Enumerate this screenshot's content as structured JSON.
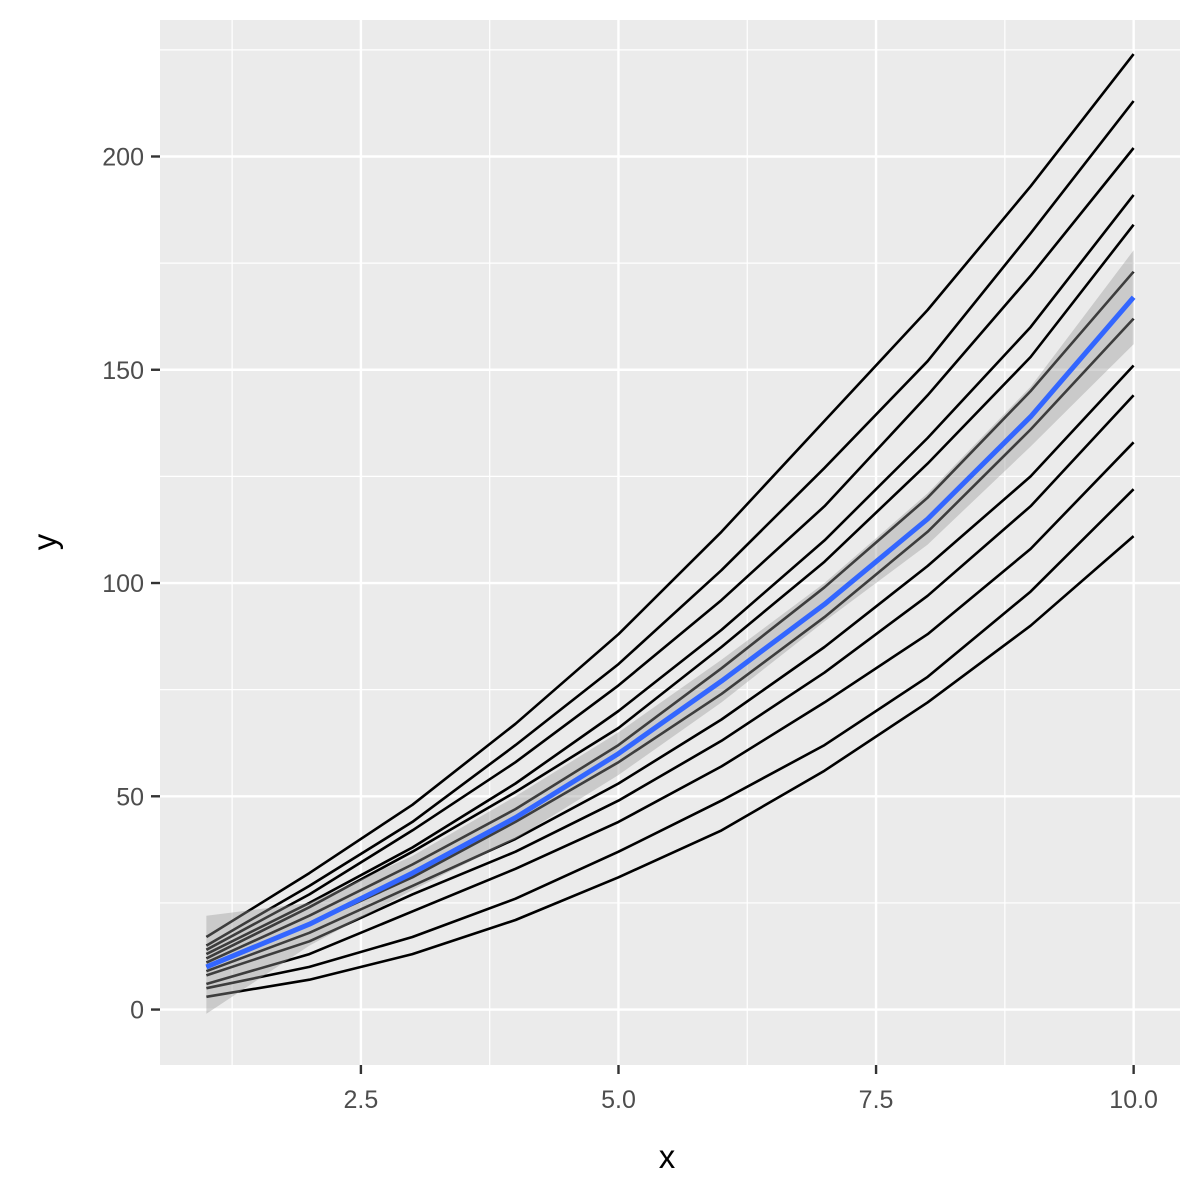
{
  "chart_data": {
    "type": "line",
    "title": "",
    "xlabel": "x",
    "ylabel": "y",
    "xlim": [
      0.55,
      10.45
    ],
    "ylim": [
      -13,
      232
    ],
    "x_ticks": [
      2.5,
      5.0,
      7.5,
      10.0
    ],
    "x_tick_labels": [
      "2.5",
      "5.0",
      "7.5",
      "10.0"
    ],
    "y_ticks": [
      0,
      50,
      100,
      150,
      200
    ],
    "y_tick_labels": [
      "0",
      "50",
      "100",
      "150",
      "200"
    ],
    "x_minor_ticks": [
      1.25,
      3.75,
      6.25,
      8.75
    ],
    "y_minor_ticks": [
      25,
      75,
      125,
      175,
      225
    ],
    "grid": true,
    "legend": "none",
    "x": [
      1,
      2,
      3,
      4,
      5,
      6,
      7,
      8,
      9,
      10
    ],
    "series": [
      {
        "values": [
          17,
          32,
          48,
          67,
          88,
          112,
          138,
          164,
          193,
          224
        ]
      },
      {
        "values": [
          15,
          29,
          44,
          62,
          81,
          103,
          127,
          152,
          182,
          213
        ]
      },
      {
        "values": [
          14,
          27,
          42,
          58,
          76,
          96,
          118,
          144,
          172,
          202
        ]
      },
      {
        "values": [
          13,
          25,
          38,
          53,
          70,
          89,
          110,
          134,
          160,
          191
        ]
      },
      {
        "values": [
          12,
          24,
          37,
          51,
          66,
          85,
          105,
          128,
          153,
          184
        ]
      },
      {
        "values": [
          11,
          22,
          34,
          47,
          62,
          80,
          99,
          120,
          145,
          173
        ]
      },
      {
        "values": [
          10,
          20,
          31,
          44,
          58,
          74,
          92,
          112,
          136,
          162
        ]
      },
      {
        "values": [
          9,
          18,
          29,
          40,
          53,
          68,
          85,
          104,
          125,
          151
        ]
      },
      {
        "values": [
          8,
          16,
          27,
          37,
          49,
          63,
          79,
          97,
          118,
          144
        ]
      },
      {
        "values": [
          6,
          13,
          23,
          33,
          44,
          57,
          72,
          88,
          108,
          133
        ]
      },
      {
        "values": [
          5,
          10,
          17,
          26,
          37,
          49,
          62,
          78,
          98,
          122
        ]
      },
      {
        "values": [
          3,
          7,
          13,
          21,
          31,
          42,
          56,
          72,
          90,
          111
        ]
      }
    ],
    "smooth": {
      "values": [
        10,
        20,
        32,
        45,
        60,
        77,
        95,
        115,
        139,
        167
      ],
      "ci_lower": [
        -1,
        15,
        28,
        40,
        55,
        72,
        91,
        109,
        132,
        156
      ],
      "ci_upper": [
        22,
        25,
        36,
        50,
        65,
        82,
        100,
        121,
        146,
        178
      ]
    },
    "colors": {
      "panel": "#ebebeb",
      "grid": "#ffffff",
      "series_line": "#000000",
      "smooth_line": "#3366ff",
      "ribbon": "#999999"
    }
  }
}
